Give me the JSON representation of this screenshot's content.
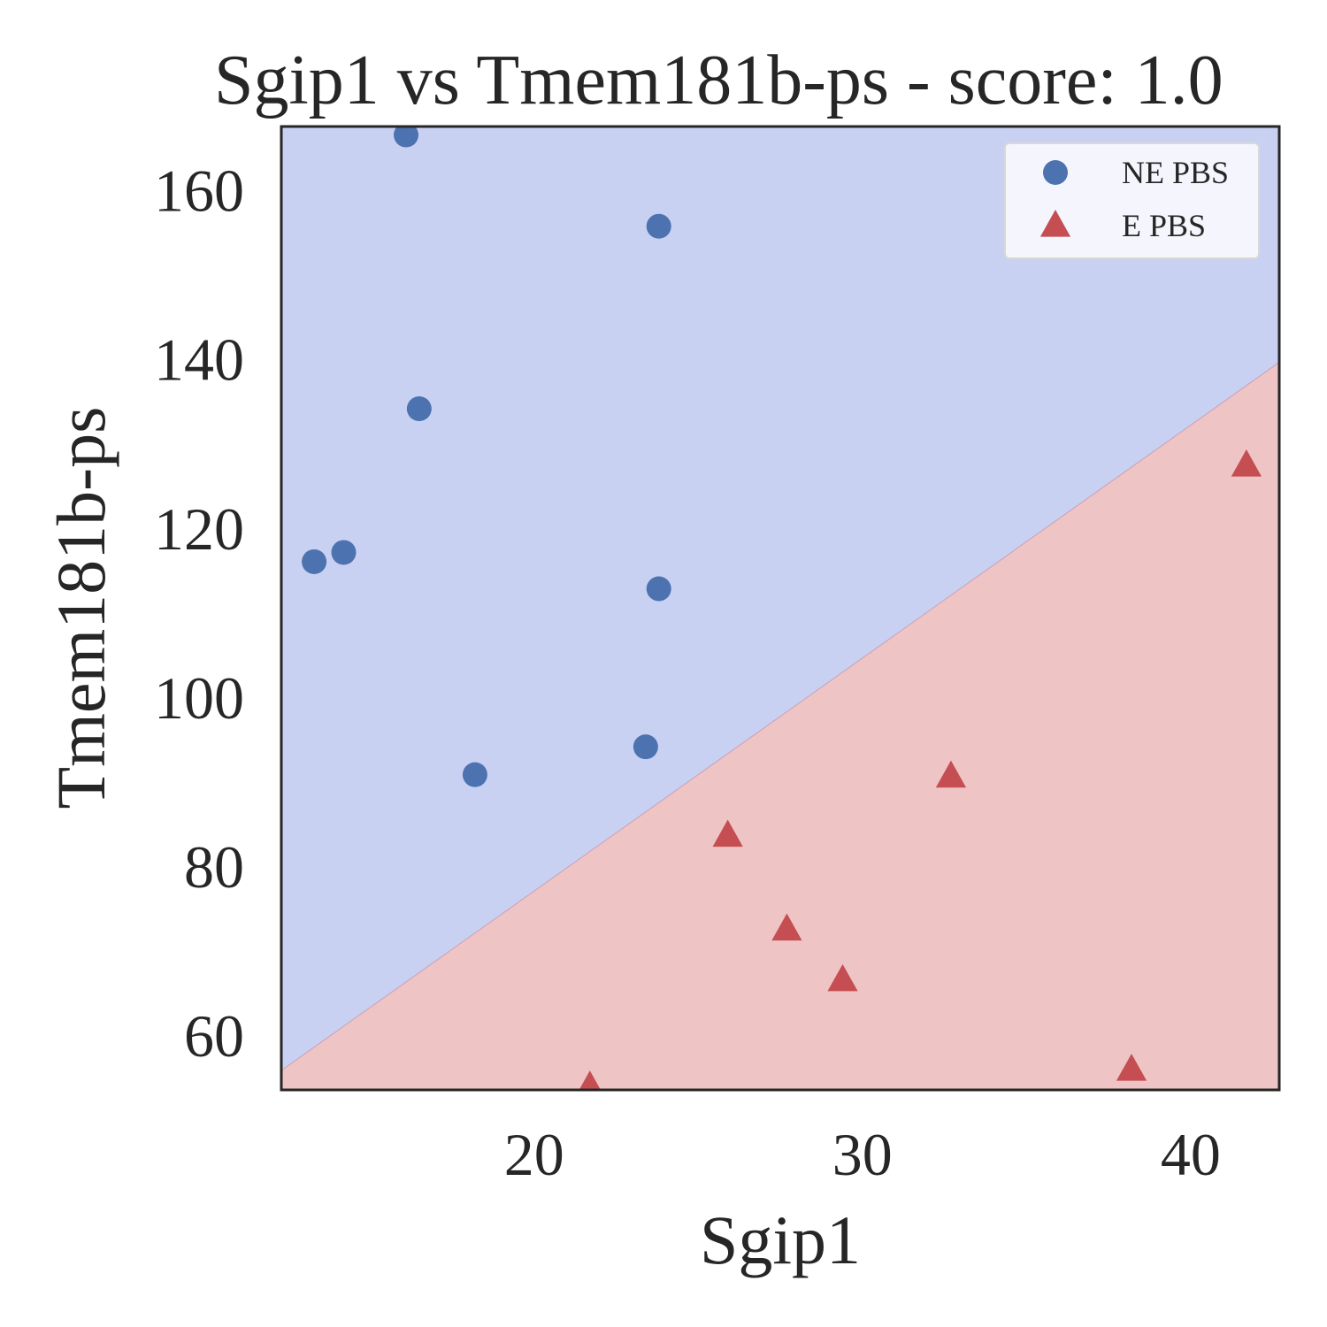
{
  "chart_data": {
    "type": "scatter",
    "title": "Sgip1 vs Tmem181b-ps - score: 1.0",
    "xlabel": "Sgip1",
    "ylabel": "Tmem181b-ps",
    "xlim": [
      12.3,
      42.7
    ],
    "ylim": [
      53.5,
      167.5
    ],
    "xticks": [
      20,
      30,
      40
    ],
    "yticks": [
      60,
      80,
      100,
      120,
      140,
      160
    ],
    "grid": false,
    "legend_position": "top-right",
    "decision_boundary": [
      [
        12.3,
        55.8
      ],
      [
        42.7,
        139.6
      ]
    ],
    "regions": {
      "above": {
        "class": "NE PBS",
        "color": "#c9d1f2"
      },
      "below": {
        "class": "E PBS",
        "color": "#efc4c4"
      }
    },
    "series": [
      {
        "name": "NE PBS",
        "marker": "circle",
        "color": "#4c72b0",
        "points": [
          [
            16.1,
            166.5
          ],
          [
            23.8,
            155.7
          ],
          [
            16.5,
            134.1
          ],
          [
            13.3,
            116.0
          ],
          [
            14.2,
            117.1
          ],
          [
            23.8,
            112.8
          ],
          [
            23.4,
            94.1
          ],
          [
            18.2,
            90.8
          ]
        ]
      },
      {
        "name": "E PBS",
        "marker": "triangle",
        "color": "#c44e52",
        "points": [
          [
            41.7,
            127.4
          ],
          [
            32.7,
            90.6
          ],
          [
            25.9,
            83.6
          ],
          [
            27.7,
            72.5
          ],
          [
            29.4,
            66.5
          ],
          [
            21.7,
            53.9
          ],
          [
            38.2,
            55.9
          ]
        ]
      }
    ]
  }
}
